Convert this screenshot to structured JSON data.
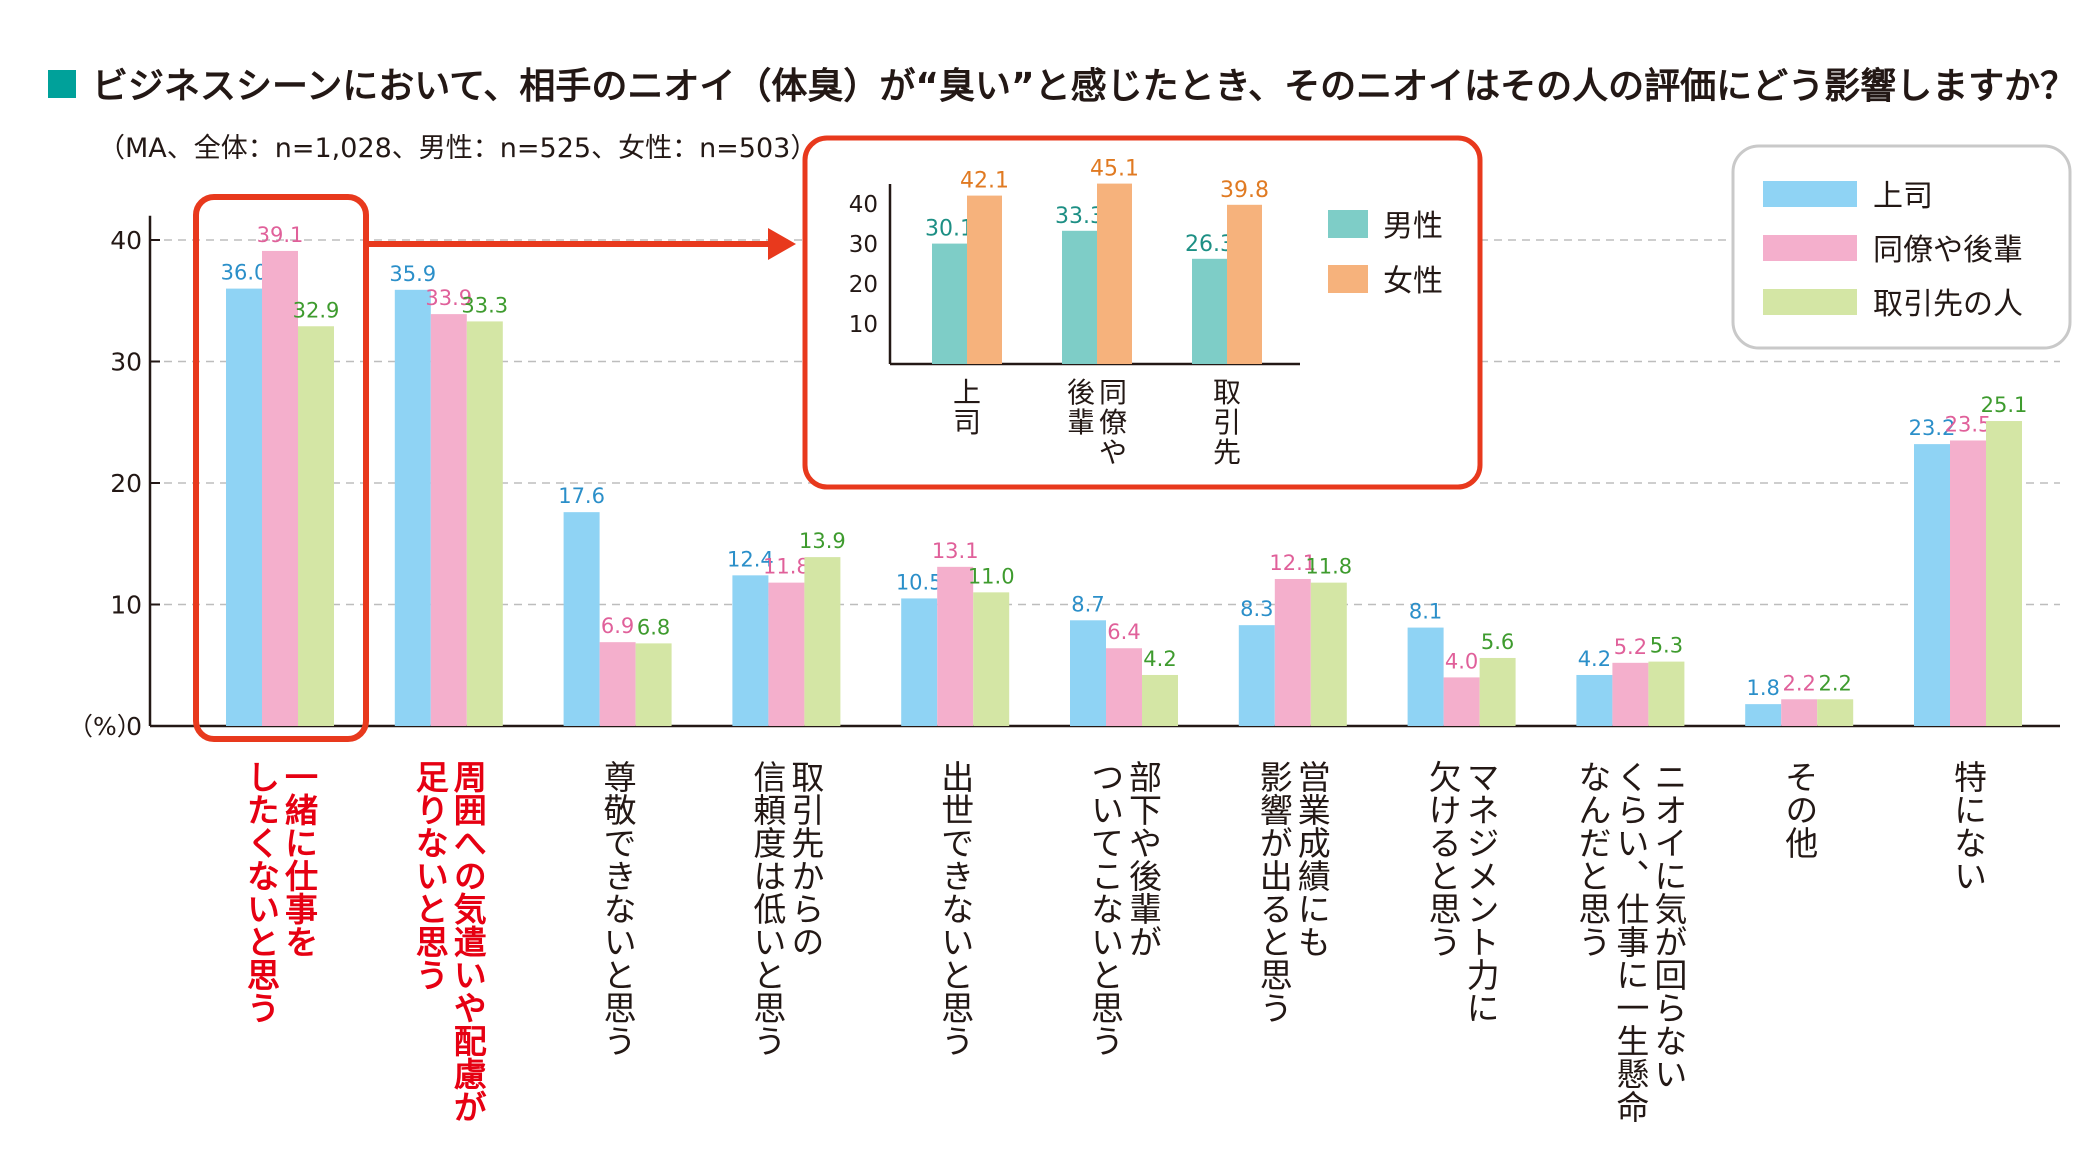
{
  "title": "ビジネスシーンにおいて、相手のニオイ（体臭）が“臭い”と感じたとき、そのニオイはその人の評価にどう影響しますか？",
  "subtitle": "（MA、全体：n=1,028、男性：n=525、女性：n=503）",
  "colors": {
    "boss": "#8fd3f4",
    "peer": "#f4afcc",
    "client": "#d4e6a5",
    "male": "#7ecdc7",
    "female": "#f6b27c",
    "highlight": "#e8391d",
    "title_square": "#00a19a"
  },
  "chart_data": [
    {
      "type": "bar",
      "ylabel": "（%）",
      "ylim": [
        0,
        40
      ],
      "yticks": [
        0,
        10,
        20,
        30,
        40
      ],
      "legend_position": "top-right",
      "highlighted_categories": [
        0,
        1
      ],
      "categories": [
        "一緒に仕事を\nしたくないと思う",
        "周囲への気遣いや配慮が\n足りないと思う",
        "尊敬できないと思う",
        "取引先からの\n信頼度は低いと思う",
        "出世できないと思う",
        "部下や後輩が\nついてこないと思う",
        "営業成績にも\n影響が出ると思う",
        "マネジメント力に\n欠けると思う",
        "ニオイに気が回らない\nくらい、仕事に一生懸命\nなんだと思う",
        "その他",
        "特にない"
      ],
      "series": [
        {
          "name": "上司",
          "values": [
            36.0,
            35.9,
            17.6,
            12.4,
            10.5,
            8.7,
            8.3,
            8.1,
            4.2,
            1.8,
            23.2
          ],
          "labels": [
            "36.0",
            "35.9",
            "17.6",
            "12.4",
            "10.5",
            "8.7",
            "8.3",
            "8.1",
            "4.2",
            "1.8",
            "23.2"
          ]
        },
        {
          "name": "同僚や後輩",
          "values": [
            39.1,
            33.9,
            6.9,
            11.8,
            13.1,
            6.4,
            12.1,
            4.0,
            5.2,
            2.2,
            23.5
          ],
          "labels": [
            "39.1",
            "33.9",
            "6.9",
            "11.8",
            "13.1",
            "6.4",
            "12.1",
            "4.0",
            "5.2",
            "2.2",
            "23.5"
          ]
        },
        {
          "name": "取引先の人",
          "values": [
            32.9,
            33.3,
            6.8,
            13.9,
            11.0,
            4.2,
            11.8,
            5.6,
            5.3,
            2.2,
            25.1
          ],
          "labels": [
            "32.9",
            "33.3",
            "6.8",
            "13.9",
            "11.0",
            "4.2",
            "11.8",
            "5.6",
            "5.3",
            "2.2",
            "25.1"
          ]
        }
      ]
    },
    {
      "type": "bar",
      "ylim": [
        0,
        45
      ],
      "yticks": [
        10,
        20,
        30,
        40
      ],
      "legend_position": "right",
      "categories": [
        "上司",
        "同僚や後輩",
        "取引先"
      ],
      "series": [
        {
          "name": "男性",
          "values": [
            30.1,
            33.3,
            26.3
          ],
          "labels": [
            "30.1",
            "33.3",
            "26.3"
          ]
        },
        {
          "name": "女性",
          "values": [
            42.1,
            45.1,
            39.8
          ],
          "labels": [
            "42.1",
            "45.1",
            "39.8"
          ]
        }
      ]
    }
  ]
}
